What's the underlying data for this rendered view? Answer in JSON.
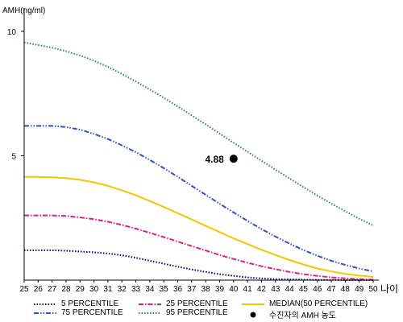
{
  "chart_data": {
    "type": "line",
    "ylabel": "AMH(ng/ml)",
    "xlabel": "나이",
    "x": [
      25,
      26,
      27,
      28,
      29,
      30,
      31,
      32,
      33,
      34,
      35,
      36,
      37,
      38,
      39,
      40,
      41,
      42,
      43,
      44,
      45,
      46,
      47,
      48,
      49,
      50
    ],
    "xlim": [
      25,
      50
    ],
    "ylim": [
      0,
      11
    ],
    "yticks": [
      5,
      10
    ],
    "series": [
      {
        "name": "5 PERCENTILE",
        "color": "#000080",
        "dash": "dot",
        "values": [
          1.2,
          1.2,
          1.2,
          1.18,
          1.15,
          1.12,
          1.07,
          1.0,
          0.9,
          0.78,
          0.66,
          0.54,
          0.43,
          0.33,
          0.24,
          0.17,
          0.11,
          0.07,
          0.04,
          0.03,
          0.02,
          0.01,
          0.01,
          0.0,
          0.0,
          0.0
        ]
      },
      {
        "name": "25 PERCENTILE",
        "color": "#e0207a",
        "dash": "dashdot",
        "values": [
          2.6,
          2.6,
          2.6,
          2.58,
          2.52,
          2.45,
          2.35,
          2.22,
          2.07,
          1.9,
          1.73,
          1.55,
          1.37,
          1.19,
          1.01,
          0.85,
          0.7,
          0.56,
          0.44,
          0.33,
          0.24,
          0.17,
          0.11,
          0.07,
          0.04,
          0.02
        ]
      },
      {
        "name": "MEDIAN(50 PERCENTILE)",
        "color": "#f0c800",
        "dash": "solid",
        "values": [
          4.15,
          4.15,
          4.13,
          4.1,
          4.03,
          3.93,
          3.79,
          3.61,
          3.41,
          3.18,
          2.94,
          2.69,
          2.44,
          2.18,
          1.93,
          1.68,
          1.45,
          1.22,
          1.01,
          0.81,
          0.63,
          0.47,
          0.35,
          0.25,
          0.18,
          0.13
        ]
      },
      {
        "name": "75 PERCENTILE",
        "color": "#3050c8",
        "dash": "dashdotdot",
        "values": [
          6.2,
          6.2,
          6.2,
          6.15,
          6.05,
          5.88,
          5.67,
          5.42,
          5.14,
          4.83,
          4.5,
          4.15,
          3.79,
          3.43,
          3.07,
          2.72,
          2.38,
          2.05,
          1.75,
          1.47,
          1.21,
          0.98,
          0.78,
          0.61,
          0.47,
          0.35
        ]
      },
      {
        "name": "95 PERCENTILE",
        "color": "#2a8a4a",
        "dash": "dot",
        "values": [
          9.55,
          9.45,
          9.34,
          9.2,
          9.03,
          8.82,
          8.57,
          8.29,
          7.98,
          7.66,
          7.33,
          6.98,
          6.62,
          6.26,
          5.89,
          5.52,
          5.16,
          4.8,
          4.44,
          4.09,
          3.74,
          3.4,
          3.08,
          2.77,
          2.47,
          2.2
        ]
      }
    ],
    "points": [
      {
        "name": "수진자의 AMH 농도",
        "x": 40,
        "y": 4.88,
        "label": "4.88",
        "color": "#000000"
      }
    ]
  }
}
